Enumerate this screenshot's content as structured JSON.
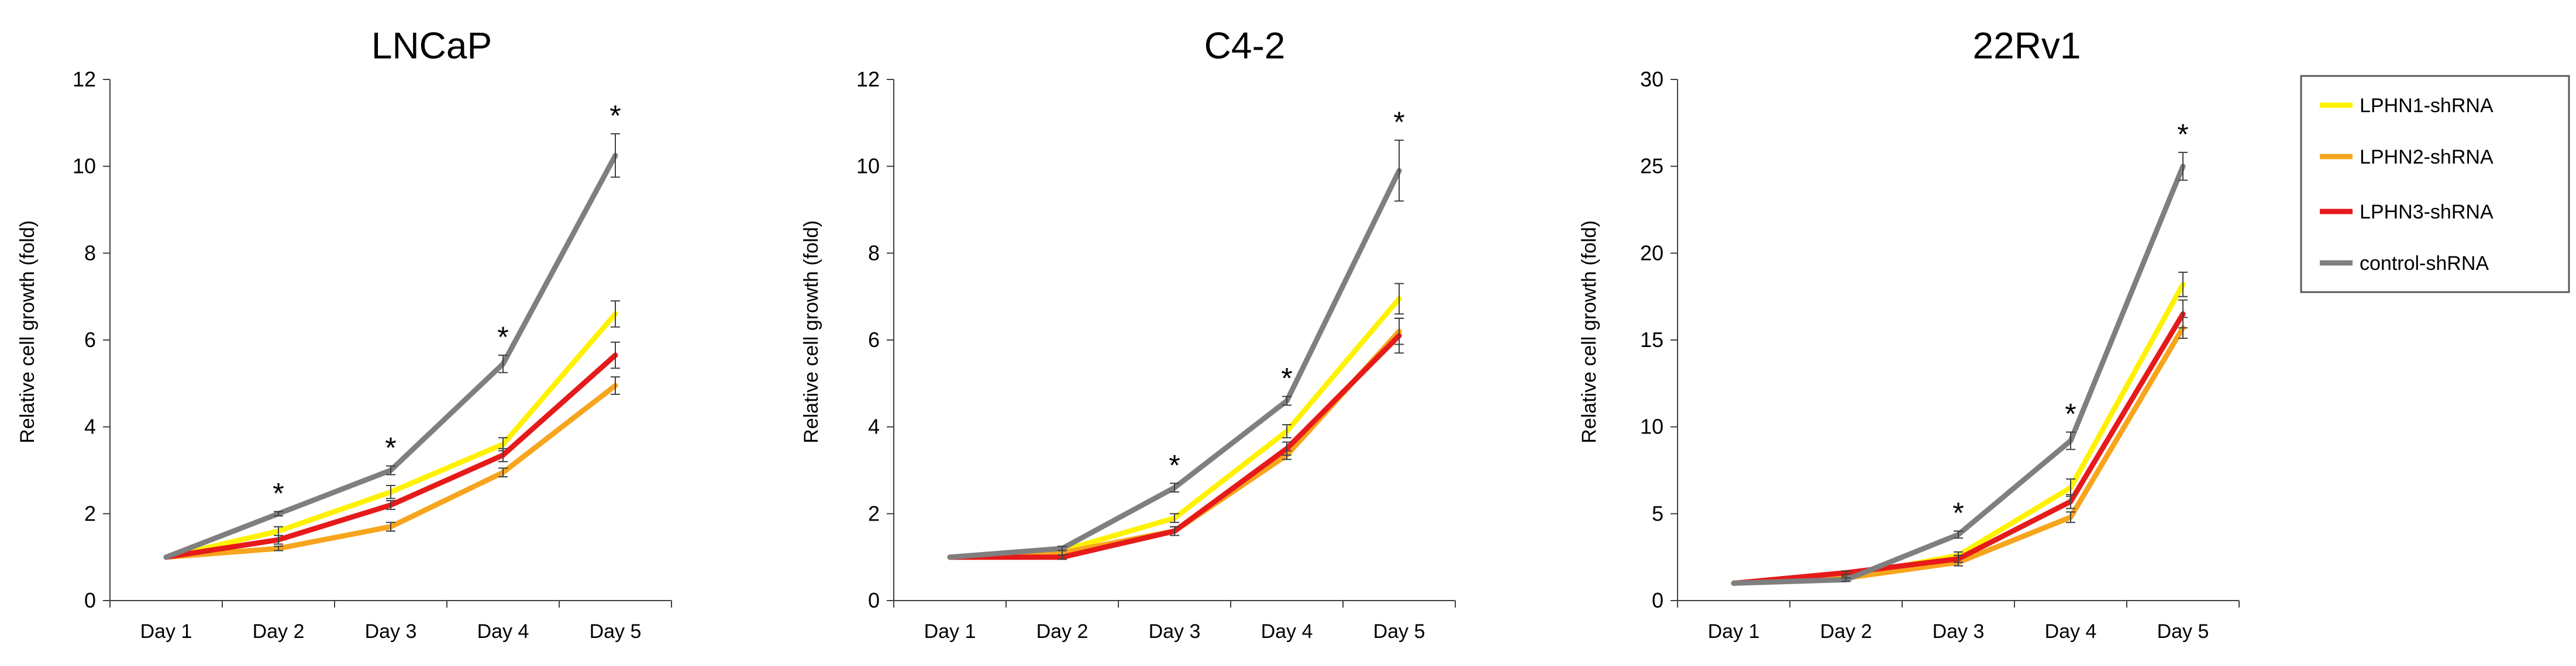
{
  "legend": {
    "placement": "right",
    "entries": [
      {
        "name": "LPHN1-shRNA",
        "color": "#FFF200"
      },
      {
        "name": "LPHN2-shRNA",
        "color": "#F7A51C"
      },
      {
        "name": "LPHN3-shRNA",
        "color": "#E61A1A"
      },
      {
        "name": "control-shRNA",
        "color": "#7F7F7F"
      }
    ]
  },
  "chart_data": [
    {
      "type": "line",
      "title": "LNCaP",
      "xlabel": "",
      "ylabel": "Relative cell growth (fold)",
      "categories": [
        "Day 1",
        "Day 2",
        "Day 3",
        "Day 4",
        "Day 5"
      ],
      "ylim": [
        0,
        12
      ],
      "yticks": [
        0,
        2,
        4,
        6,
        8,
        10,
        12
      ],
      "grid": false,
      "series": [
        {
          "name": "LPHN1-shRNA",
          "color": "#FFF200",
          "values": [
            1,
            1.6,
            2.5,
            3.6,
            6.6
          ],
          "errors": [
            0,
            0.1,
            0.15,
            0.15,
            0.3
          ]
        },
        {
          "name": "LPHN2-shRNA",
          "color": "#F7A51C",
          "values": [
            1,
            1.2,
            1.7,
            2.95,
            4.95
          ],
          "errors": [
            0,
            0.05,
            0.1,
            0.1,
            0.2
          ]
        },
        {
          "name": "LPHN3-shRNA",
          "color": "#E61A1A",
          "values": [
            1,
            1.4,
            2.2,
            3.35,
            5.65
          ],
          "errors": [
            0,
            0.1,
            0.1,
            0.15,
            0.3
          ]
        },
        {
          "name": "control-shRNA",
          "color": "#7F7F7F",
          "values": [
            1,
            2.0,
            3.0,
            5.45,
            10.25
          ],
          "errors": [
            0,
            0.05,
            0.1,
            0.2,
            0.5
          ]
        }
      ],
      "significance": [
        "",
        "*",
        "*",
        "*",
        "*"
      ]
    },
    {
      "type": "line",
      "title": "C4-2",
      "xlabel": "",
      "ylabel": "Relative cell growth (fold)",
      "categories": [
        "Day 1",
        "Day 2",
        "Day 3",
        "Day 4",
        "Day 5"
      ],
      "ylim": [
        0,
        12
      ],
      "yticks": [
        0,
        2,
        4,
        6,
        8,
        10,
        12
      ],
      "grid": false,
      "series": [
        {
          "name": "LPHN1-shRNA",
          "color": "#FFF200",
          "values": [
            1,
            1.15,
            1.9,
            3.9,
            6.95
          ],
          "errors": [
            0,
            0.05,
            0.1,
            0.15,
            0.35
          ]
        },
        {
          "name": "LPHN2-shRNA",
          "color": "#F7A51C",
          "values": [
            1,
            1.1,
            1.6,
            3.35,
            6.2
          ],
          "errors": [
            0,
            0.05,
            0.1,
            0.1,
            0.3
          ]
        },
        {
          "name": "LPHN3-shRNA",
          "color": "#E61A1A",
          "values": [
            1,
            1.0,
            1.6,
            3.5,
            6.1
          ],
          "errors": [
            0,
            0.05,
            0.1,
            0.15,
            0.4
          ]
        },
        {
          "name": "control-shRNA",
          "color": "#7F7F7F",
          "values": [
            1,
            1.2,
            2.6,
            4.6,
            9.9
          ],
          "errors": [
            0,
            0.05,
            0.1,
            0.1,
            0.7
          ]
        }
      ],
      "significance": [
        "",
        "",
        "*",
        "*",
        "*"
      ]
    },
    {
      "type": "line",
      "title": "22Rv1",
      "xlabel": "",
      "ylabel": "Relative cell growth (fold)",
      "categories": [
        "Day 1",
        "Day 2",
        "Day 3",
        "Day 4",
        "Day 5"
      ],
      "ylim": [
        0,
        30
      ],
      "yticks": [
        0,
        5,
        10,
        15,
        20,
        25,
        30
      ],
      "grid": false,
      "series": [
        {
          "name": "LPHN1-shRNA",
          "color": "#FFF200",
          "values": [
            1,
            1.4,
            2.6,
            6.5,
            18.2
          ],
          "errors": [
            0,
            0.1,
            0.2,
            0.5,
            0.7
          ]
        },
        {
          "name": "LPHN2-shRNA",
          "color": "#F7A51C",
          "values": [
            1,
            1.3,
            2.2,
            4.8,
            15.7
          ],
          "errors": [
            0,
            0.1,
            0.2,
            0.3,
            0.6
          ]
        },
        {
          "name": "LPHN3-shRNA",
          "color": "#E61A1A",
          "values": [
            1,
            1.6,
            2.4,
            5.7,
            16.5
          ],
          "errors": [
            0,
            0.1,
            0.2,
            0.4,
            0.8
          ]
        },
        {
          "name": "control-shRNA",
          "color": "#7F7F7F",
          "values": [
            1,
            1.2,
            3.8,
            9.2,
            25.0
          ],
          "errors": [
            0,
            0.1,
            0.2,
            0.5,
            0.8
          ]
        }
      ],
      "significance": [
        "",
        "",
        "*",
        "*",
        "*"
      ]
    }
  ]
}
